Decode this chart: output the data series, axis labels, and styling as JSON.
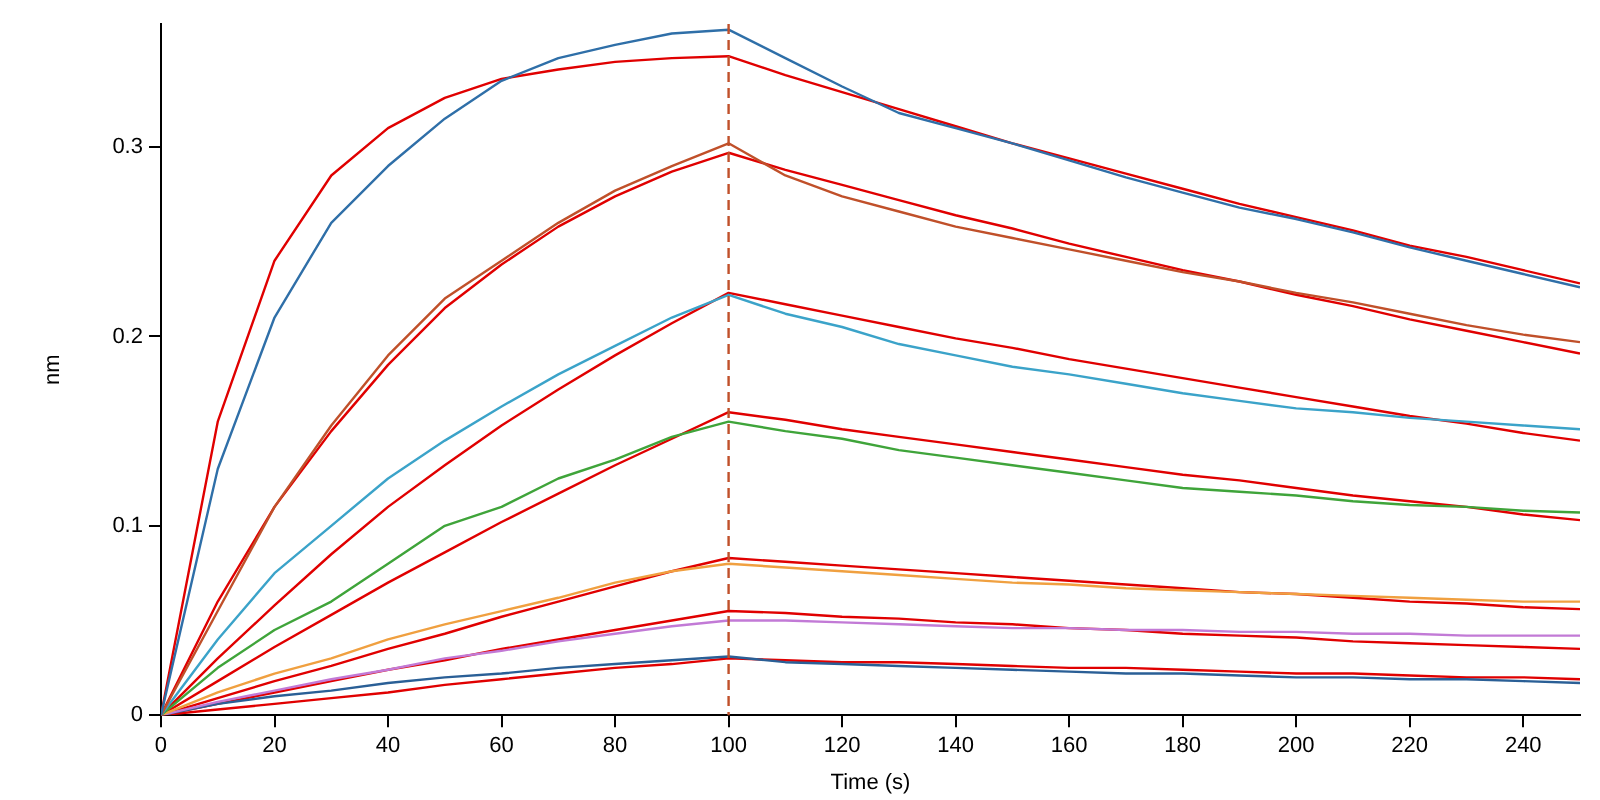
{
  "chart_data": {
    "type": "line",
    "xlabel": "Time (s)",
    "ylabel": "nm",
    "xlim": [
      0,
      250
    ],
    "ylim": [
      0,
      0.365
    ],
    "xticks": [
      0,
      20,
      40,
      60,
      80,
      100,
      120,
      140,
      160,
      180,
      200,
      220,
      240
    ],
    "yticks": [
      0,
      0.1,
      0.2,
      0.3
    ],
    "grid": false,
    "legend": false,
    "marker": "none",
    "line_style": "solid",
    "x": [
      0,
      10,
      20,
      30,
      40,
      50,
      60,
      70,
      80,
      90,
      100,
      110,
      120,
      130,
      140,
      150,
      160,
      170,
      180,
      190,
      200,
      210,
      220,
      230,
      240,
      250
    ],
    "ref_lines": [
      {
        "axis": "x",
        "value": 100,
        "color": "#c0502a",
        "line_style": "dashed"
      }
    ],
    "series": [
      {
        "color": "#2f6fa8",
        "values": [
          0,
          0.13,
          0.21,
          0.26,
          0.29,
          0.315,
          0.335,
          0.347,
          0.354,
          0.36,
          0.362,
          0.347,
          0.332,
          0.318,
          0.31,
          0.302,
          0.293,
          0.284,
          0.276,
          0.268,
          0.262,
          0.255,
          0.247,
          0.24,
          0.233,
          0.226
        ]
      },
      {
        "color": "#c0502a",
        "values": [
          0,
          0.055,
          0.11,
          0.153,
          0.19,
          0.22,
          0.24,
          0.26,
          0.277,
          0.29,
          0.302,
          0.285,
          0.274,
          0.266,
          0.258,
          0.252,
          0.246,
          0.24,
          0.234,
          0.229,
          0.223,
          0.218,
          0.212,
          0.206,
          0.201,
          0.197
        ]
      },
      {
        "color": "#3ba3c9",
        "values": [
          0,
          0.04,
          0.075,
          0.1,
          0.125,
          0.145,
          0.163,
          0.18,
          0.195,
          0.21,
          0.222,
          0.212,
          0.205,
          0.196,
          0.19,
          0.184,
          0.18,
          0.175,
          0.17,
          0.166,
          0.162,
          0.16,
          0.157,
          0.155,
          0.153,
          0.151
        ]
      },
      {
        "color": "#3fa43a",
        "values": [
          0,
          0.025,
          0.045,
          0.06,
          0.08,
          0.1,
          0.11,
          0.125,
          0.135,
          0.147,
          0.155,
          0.15,
          0.146,
          0.14,
          0.136,
          0.132,
          0.128,
          0.124,
          0.12,
          0.118,
          0.116,
          0.113,
          0.111,
          0.11,
          0.108,
          0.107
        ]
      },
      {
        "color": "#f0a040",
        "values": [
          0,
          0.012,
          0.022,
          0.03,
          0.04,
          0.048,
          0.055,
          0.062,
          0.07,
          0.076,
          0.08,
          0.078,
          0.076,
          0.074,
          0.072,
          0.07,
          0.069,
          0.067,
          0.066,
          0.065,
          0.064,
          0.063,
          0.062,
          0.061,
          0.06,
          0.06
        ]
      },
      {
        "color": "#c27ad6",
        "values": [
          0,
          0.007,
          0.013,
          0.019,
          0.024,
          0.03,
          0.034,
          0.039,
          0.043,
          0.047,
          0.05,
          0.05,
          0.049,
          0.048,
          0.047,
          0.046,
          0.046,
          0.045,
          0.045,
          0.044,
          0.044,
          0.043,
          0.043,
          0.042,
          0.042,
          0.042
        ]
      },
      {
        "color": "#2a5f96",
        "values": [
          0,
          0.006,
          0.01,
          0.013,
          0.017,
          0.02,
          0.022,
          0.025,
          0.027,
          0.029,
          0.031,
          0.028,
          0.027,
          0.026,
          0.025,
          0.024,
          0.023,
          0.022,
          0.022,
          0.021,
          0.02,
          0.02,
          0.019,
          0.019,
          0.018,
          0.017
        ]
      },
      {
        "color": "#e00000",
        "values": [
          0,
          0.155,
          0.24,
          0.285,
          0.31,
          0.326,
          0.336,
          0.341,
          0.345,
          0.347,
          0.348,
          0.338,
          0.329,
          0.32,
          0.311,
          0.302,
          0.294,
          0.286,
          0.278,
          0.27,
          0.263,
          0.256,
          0.248,
          0.242,
          0.235,
          0.228
        ]
      },
      {
        "color": "#e00000",
        "values": [
          0,
          0.06,
          0.11,
          0.15,
          0.185,
          0.215,
          0.238,
          0.258,
          0.274,
          0.287,
          0.297,
          0.288,
          0.28,
          0.272,
          0.264,
          0.257,
          0.249,
          0.242,
          0.235,
          0.229,
          0.222,
          0.216,
          0.209,
          0.203,
          0.197,
          0.191
        ]
      },
      {
        "color": "#e00000",
        "values": [
          0,
          0.03,
          0.058,
          0.085,
          0.11,
          0.132,
          0.153,
          0.172,
          0.19,
          0.207,
          0.223,
          0.217,
          0.211,
          0.205,
          0.199,
          0.194,
          0.188,
          0.183,
          0.178,
          0.173,
          0.168,
          0.163,
          0.158,
          0.154,
          0.149,
          0.145
        ]
      },
      {
        "color": "#e00000",
        "values": [
          0,
          0.018,
          0.036,
          0.053,
          0.07,
          0.086,
          0.102,
          0.117,
          0.132,
          0.146,
          0.16,
          0.156,
          0.151,
          0.147,
          0.143,
          0.139,
          0.135,
          0.131,
          0.127,
          0.124,
          0.12,
          0.116,
          0.113,
          0.11,
          0.106,
          0.103
        ]
      },
      {
        "color": "#e00000",
        "values": [
          0,
          0.009,
          0.018,
          0.026,
          0.035,
          0.043,
          0.052,
          0.06,
          0.068,
          0.076,
          0.083,
          0.081,
          0.079,
          0.077,
          0.075,
          0.073,
          0.071,
          0.069,
          0.067,
          0.065,
          0.064,
          0.062,
          0.06,
          0.059,
          0.057,
          0.056
        ]
      },
      {
        "color": "#e00000",
        "values": [
          0,
          0.006,
          0.012,
          0.018,
          0.024,
          0.029,
          0.035,
          0.04,
          0.045,
          0.05,
          0.055,
          0.054,
          0.052,
          0.051,
          0.049,
          0.048,
          0.046,
          0.045,
          0.043,
          0.042,
          0.041,
          0.039,
          0.038,
          0.037,
          0.036,
          0.035
        ]
      },
      {
        "color": "#e00000",
        "values": [
          0,
          0.003,
          0.006,
          0.009,
          0.012,
          0.016,
          0.019,
          0.022,
          0.025,
          0.027,
          0.03,
          0.029,
          0.028,
          0.028,
          0.027,
          0.026,
          0.025,
          0.025,
          0.024,
          0.023,
          0.022,
          0.022,
          0.021,
          0.02,
          0.02,
          0.019
        ]
      }
    ]
  }
}
